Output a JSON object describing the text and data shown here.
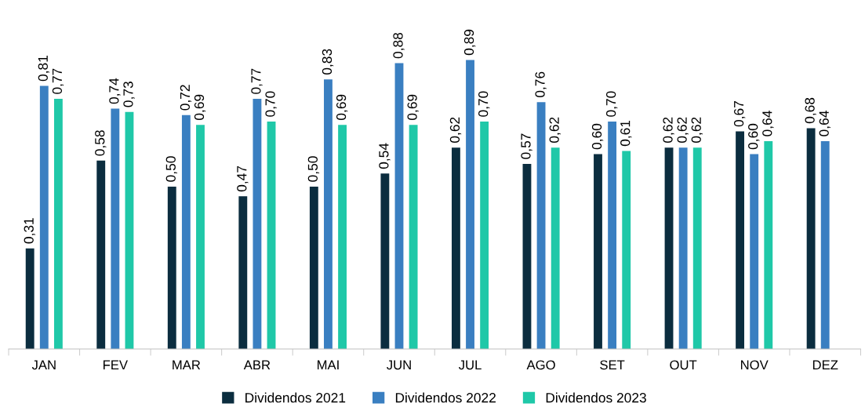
{
  "chart_data": {
    "type": "bar",
    "categories": [
      "JAN",
      "FEV",
      "MAR",
      "ABR",
      "MAI",
      "JUN",
      "JUL",
      "AGO",
      "SET",
      "OUT",
      "NOV",
      "DEZ"
    ],
    "series": [
      {
        "name": "Dividendos 2021",
        "color": "#0b2d3f",
        "values": [
          0.31,
          0.58,
          0.5,
          0.47,
          0.5,
          0.54,
          0.62,
          0.57,
          0.6,
          0.62,
          0.67,
          0.68
        ],
        "value_labels": [
          "0,31",
          "0,58",
          "0,50",
          "0,47",
          "0,50",
          "0,54",
          "0,62",
          "0,57",
          "0,60",
          "0,62",
          "0,67",
          "0,68"
        ]
      },
      {
        "name": "Dividendos 2022",
        "color": "#3a7fc1",
        "values": [
          0.81,
          0.74,
          0.72,
          0.77,
          0.83,
          0.88,
          0.89,
          0.76,
          0.7,
          0.62,
          0.6,
          0.64
        ],
        "value_labels": [
          "0,81",
          "0,74",
          "0,72",
          "0,77",
          "0,83",
          "0,88",
          "0,89",
          "0,76",
          "0,70",
          "0,62",
          "0,60",
          "0,64"
        ]
      },
      {
        "name": "Dividendos 2023",
        "color": "#1fc8a8",
        "values": [
          0.77,
          0.73,
          0.69,
          0.7,
          0.69,
          0.69,
          0.7,
          0.62,
          0.61,
          0.62,
          0.64,
          null
        ],
        "value_labels": [
          "0,77",
          "0,73",
          "0,69",
          "0,70",
          "0,69",
          "0,69",
          "0,70",
          "0,62",
          "0,61",
          "0,62",
          "0,64",
          null
        ]
      }
    ],
    "legend": "bottom",
    "grid": false
  }
}
